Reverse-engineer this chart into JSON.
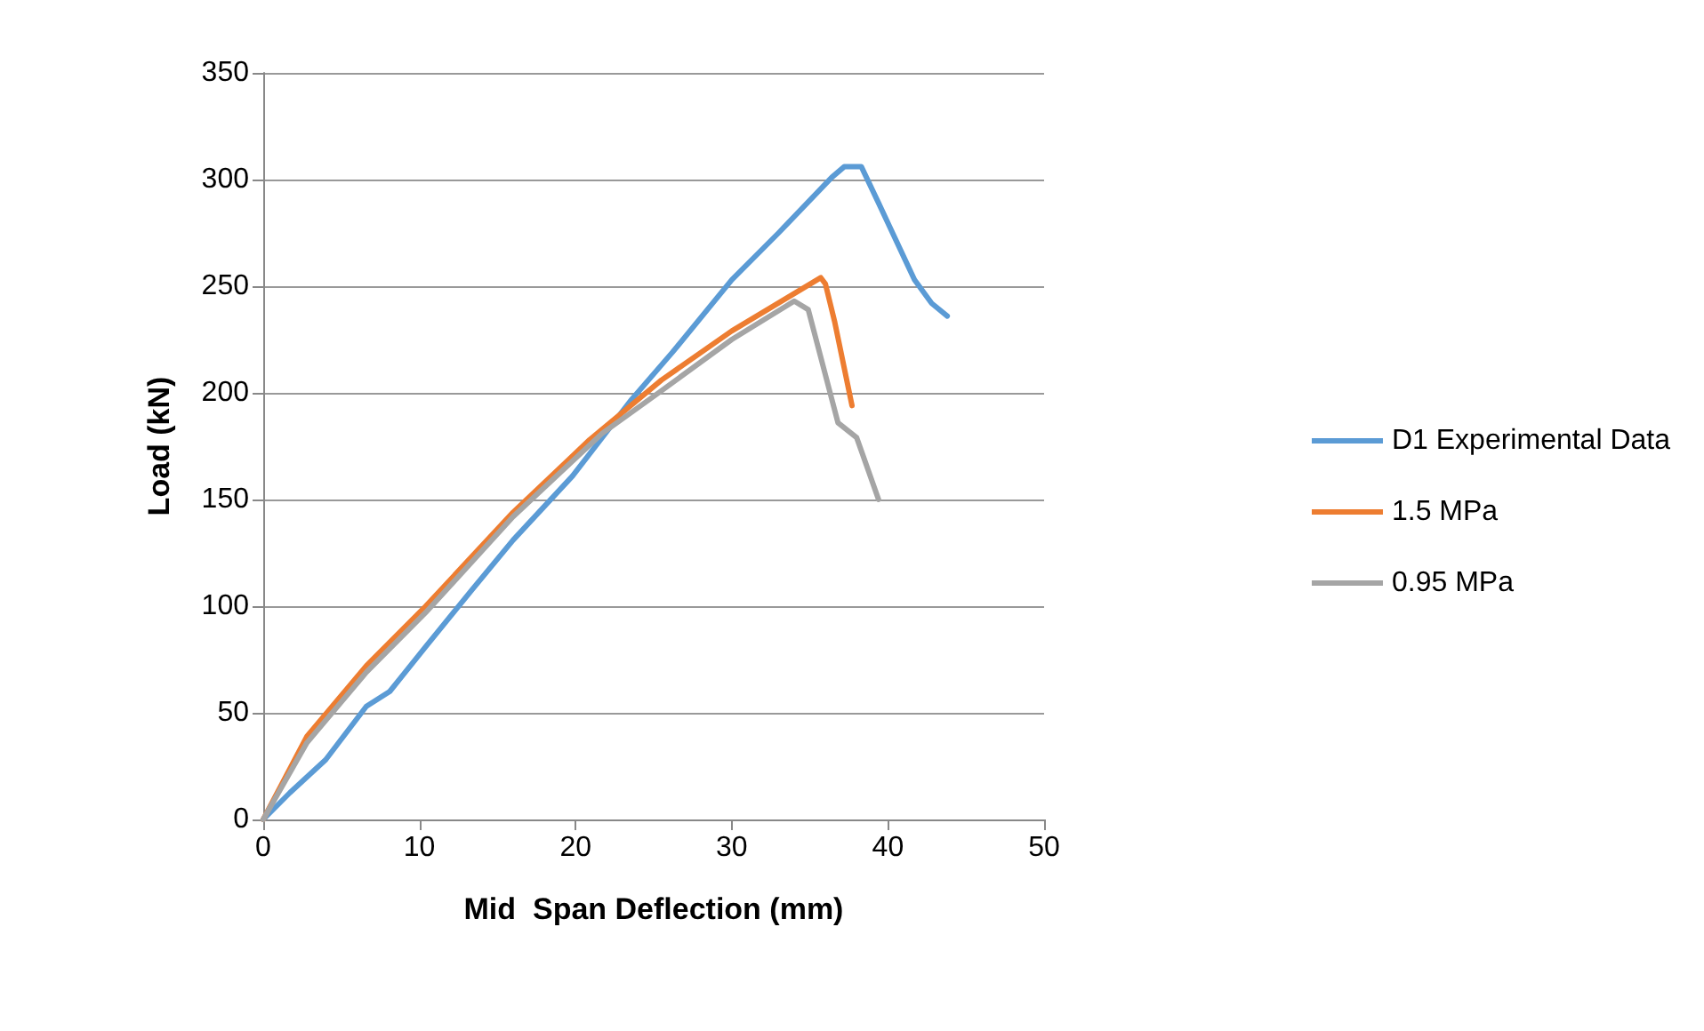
{
  "chart_data": {
    "type": "line",
    "xlabel": "Mid  Span Deflection (mm)",
    "ylabel": "Load (kN)",
    "xlim": [
      0,
      50
    ],
    "xticks": [
      0,
      10,
      20,
      30,
      40,
      50
    ],
    "ylim": [
      0,
      350
    ],
    "yticks": [
      0,
      50,
      100,
      150,
      200,
      250,
      300,
      350
    ],
    "grid": "y",
    "legend": "right",
    "marker": "none",
    "line_style": "solid",
    "series": [
      {
        "name": "D1 Experimental Data",
        "color": "#5b9bd5",
        "x": [
          0,
          1.7,
          4,
          6.6,
          8.1,
          10.4,
          13.4,
          16,
          19.8,
          23.6,
          26.2,
          30,
          33,
          36.4,
          37.2,
          38.3,
          39.4,
          41.7,
          42.8,
          43.8
        ],
        "values": [
          0,
          12.5,
          28,
          53,
          60,
          81,
          108,
          131,
          161,
          197,
          219,
          253,
          275,
          301,
          306,
          306,
          289,
          253,
          242,
          236
        ]
      },
      {
        "name": "1.5 MPa",
        "color": "#ed7d31",
        "x": [
          0,
          2.8,
          6.6,
          10.4,
          16,
          20.9,
          25.5,
          30,
          35.7,
          36,
          36.6,
          37.7
        ],
        "values": [
          0,
          39,
          72,
          100,
          144,
          178,
          206,
          229,
          254,
          251,
          233,
          194
        ]
      },
      {
        "name": "0.95 MPa",
        "color": "#a5a5a5",
        "x": [
          0,
          2.8,
          6.6,
          10.4,
          16,
          21.7,
          25.5,
          30,
          34,
          34.9,
          36.8,
          38,
          39.4
        ],
        "values": [
          0,
          36,
          69,
          97,
          142,
          181,
          201,
          225,
          243,
          239,
          186,
          179,
          150
        ]
      }
    ]
  }
}
